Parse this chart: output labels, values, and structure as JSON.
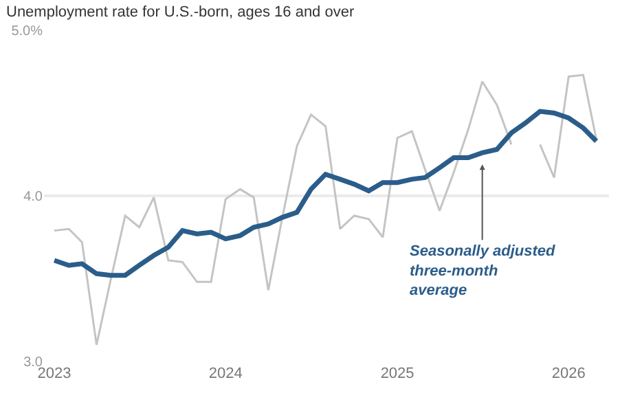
{
  "chart_data": {
    "type": "line",
    "title": "Unemployment rate for U.S.-born, ages 16 and over",
    "x": [
      "2023-01",
      "2023-02",
      "2023-03",
      "2023-04",
      "2023-05",
      "2023-06",
      "2023-07",
      "2023-08",
      "2023-09",
      "2023-10",
      "2023-11",
      "2023-12",
      "2024-01",
      "2024-02",
      "2024-03",
      "2024-04",
      "2024-05",
      "2024-06",
      "2024-07",
      "2024-08",
      "2024-09",
      "2024-10",
      "2024-11",
      "2024-12",
      "2025-01",
      "2025-02",
      "2025-03",
      "2025-04",
      "2025-05",
      "2025-06",
      "2025-07",
      "2025-08",
      "2025-09",
      "2025-10",
      "2025-11",
      "2025-12",
      "2026-01",
      "2026-02",
      "2026-03"
    ],
    "series": [
      {
        "color": "#c4c4c4",
        "values": [
          3.79,
          3.8,
          3.72,
          3.1,
          3.49,
          3.88,
          3.81,
          3.99,
          3.61,
          3.6,
          3.48,
          3.48,
          3.98,
          4.04,
          3.99,
          3.43,
          3.87,
          4.3,
          4.49,
          4.42,
          3.8,
          3.88,
          3.86,
          3.75,
          4.35,
          4.39,
          4.16,
          3.91,
          4.14,
          4.4,
          4.69,
          4.55,
          4.31,
          null,
          4.31,
          4.11,
          4.72,
          4.73,
          4.34
        ]
      },
      {
        "color": "#2b5d8a",
        "values": [
          3.61,
          3.58,
          3.59,
          3.53,
          3.52,
          3.52,
          3.58,
          3.64,
          3.69,
          3.79,
          3.77,
          3.78,
          3.74,
          3.76,
          3.81,
          3.83,
          3.87,
          3.9,
          4.04,
          4.13,
          4.1,
          4.07,
          4.03,
          4.08,
          4.08,
          4.1,
          4.11,
          4.17,
          4.23,
          4.23,
          4.26,
          4.28,
          4.38,
          4.44,
          4.51,
          4.5,
          4.47,
          4.41,
          4.33
        ]
      }
    ],
    "xlim": [
      "2022-12-10",
      "2026-03-28"
    ],
    "xticks": [
      "2023",
      "2024",
      "2025",
      "2026"
    ],
    "ylim": [
      3.0,
      5.0
    ],
    "yticks": [
      {
        "value": 3.0,
        "label": "3.0"
      },
      {
        "value": 4.0,
        "label": "4.0"
      },
      {
        "value": 5.0,
        "label": "5.0%"
      }
    ],
    "grid": "y",
    "marker": "none",
    "line_style": "solid",
    "annotations": [
      {
        "text": "Seasonally adjusted three-month average",
        "x": "2025-07",
        "y": 4.19
      }
    ]
  }
}
